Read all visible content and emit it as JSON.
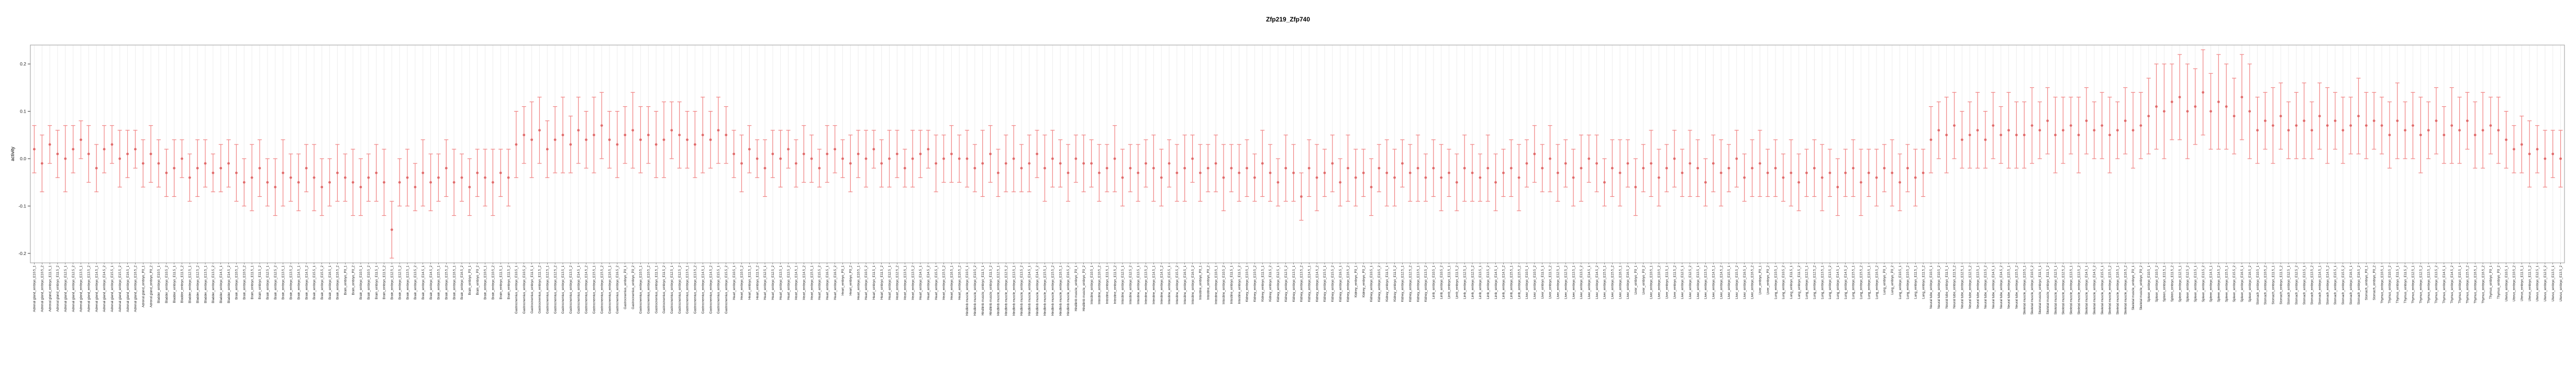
{
  "chart_data": {
    "type": "scatter",
    "title": "Zfp219_Zfp740",
    "ylabel": "activity",
    "xlabel": "",
    "ylim": [
      -0.22,
      0.24
    ],
    "yticks": [
      0.2,
      0.1,
      0.0,
      -0.1,
      -0.2
    ],
    "grid": "vertical-per-category",
    "legend": "none",
    "marker": "point-with-capped-errorbar",
    "point_color": "#e06c6c",
    "error_color": "#f08080",
    "gridline_color": "#ededed",
    "frame_color": "#999999",
    "timepoints": [
      "E10.5_1",
      "E10.5_2",
      "E11.5_1",
      "E11.5_2",
      "E12.5_1",
      "E12.5_2",
      "E13.5_1",
      "E13.5_2",
      "E14.5_1",
      "E14.5_2",
      "E15.5_1",
      "E15.5_2",
      "E16.5_1",
      "E16.5_2",
      "P0_1",
      "P0_2"
    ],
    "groups": [
      {
        "name": "Adrenal gland",
        "values": [
          0.02,
          -0.01,
          0.03,
          0.01,
          0,
          0.02,
          0.04,
          0.01,
          -0.02,
          0.02,
          0.03,
          0,
          0.01,
          0.02,
          -0.01,
          0.01
        ],
        "errors": [
          0.05,
          0.06,
          0.04,
          0.05,
          0.07,
          0.05,
          0.04,
          0.06,
          0.05,
          0.05,
          0.04,
          0.06,
          0.05,
          0.04,
          0.05,
          0.06
        ]
      },
      {
        "name": "Bladder",
        "values": [
          -0.01,
          -0.03,
          -0.02,
          0,
          -0.04,
          -0.02,
          -0.01,
          -0.03,
          -0.02,
          -0.01
        ],
        "errors": [
          0.05,
          0.05,
          0.06,
          0.04,
          0.05,
          0.06,
          0.05,
          0.04,
          0.05,
          0.05
        ]
      },
      {
        "name": "Brain",
        "values": [
          -0.03,
          -0.05,
          -0.04,
          -0.02,
          -0.05,
          -0.06,
          -0.03,
          -0.04,
          -0.05,
          -0.02,
          -0.04,
          -0.06,
          -0.05,
          -0.03,
          -0.04,
          -0.05,
          -0.06,
          -0.04,
          -0.03,
          -0.05,
          -0.15,
          -0.05,
          -0.04,
          -0.06,
          -0.03,
          -0.05,
          -0.04,
          -0.02,
          -0.05,
          -0.04,
          -0.06,
          -0.03,
          -0.04,
          -0.05,
          -0.03,
          -0.04
        ],
        "errors": [
          0.06,
          0.05,
          0.07,
          0.06,
          0.05,
          0.06,
          0.07,
          0.05,
          0.06,
          0.05,
          0.07,
          0.06,
          0.05,
          0.06,
          0.05,
          0.07,
          0.06,
          0.05,
          0.06,
          0.07,
          0.06,
          0.05,
          0.06,
          0.05,
          0.07,
          0.06,
          0.05,
          0.06,
          0.07,
          0.05,
          0.06,
          0.05,
          0.06,
          0.07,
          0.05,
          0.06
        ]
      },
      {
        "name": "Gastrocnemius",
        "values": [
          0.03,
          0.05,
          0.04,
          0.06,
          0.02,
          0.04,
          0.05,
          0.03,
          0.06,
          0.04,
          0.05,
          0.07,
          0.04,
          0.03,
          0.05,
          0.06,
          0.04,
          0.05,
          0.03,
          0.04,
          0.06,
          0.05,
          0.04,
          0.03,
          0.05,
          0.04,
          0.06,
          0.05
        ],
        "errors": [
          0.07,
          0.06,
          0.08,
          0.07,
          0.06,
          0.07,
          0.08,
          0.06,
          0.07,
          0.06,
          0.08,
          0.07,
          0.06,
          0.07,
          0.06,
          0.08,
          0.07,
          0.06,
          0.07,
          0.08,
          0.06,
          0.07,
          0.06,
          0.07,
          0.08,
          0.06,
          0.07,
          0.06
        ]
      },
      {
        "name": "Heart",
        "values": [
          0.01,
          -0.01,
          0.02,
          0,
          -0.02,
          0.01,
          0,
          0.02,
          -0.01,
          0.01,
          0,
          -0.02,
          0.01,
          0.02,
          0,
          -0.01,
          0.01,
          0,
          0.02,
          -0.01,
          0,
          0.01,
          -0.02,
          0,
          0.01,
          0.02,
          -0.01,
          0,
          0.01,
          0
        ],
        "errors": [
          0.05,
          0.06,
          0.05,
          0.04,
          0.06,
          0.05,
          0.06,
          0.04,
          0.05,
          0.06,
          0.05,
          0.04,
          0.06,
          0.05,
          0.04,
          0.06,
          0.05,
          0.06,
          0.04,
          0.05,
          0.06,
          0.05,
          0.04,
          0.06,
          0.05,
          0.04,
          0.06,
          0.05,
          0.06,
          0.05
        ]
      },
      {
        "name": "Hindlimb muscle",
        "values": [
          0,
          -0.02,
          -0.01,
          0.01,
          -0.03,
          -0.01,
          0,
          -0.02,
          -0.01,
          0.01,
          -0.02,
          0,
          -0.01,
          -0.03,
          0,
          -0.01
        ],
        "errors": [
          0.06,
          0.05,
          0.07,
          0.06,
          0.05,
          0.06,
          0.07,
          0.05,
          0.06,
          0.05,
          0.07,
          0.06,
          0.05,
          0.06,
          0.05,
          0.06
        ]
      },
      {
        "name": "Intestine",
        "values": [
          -0.01,
          -0.03,
          -0.02,
          0,
          -0.04,
          -0.02,
          -0.03,
          -0.01,
          -0.02,
          -0.04,
          -0.01,
          -0.03,
          -0.02,
          0,
          -0.03,
          -0.02,
          -0.01,
          -0.04,
          -0.02,
          -0.03
        ],
        "errors": [
          0.05,
          0.06,
          0.05,
          0.07,
          0.06,
          0.05,
          0.06,
          0.05,
          0.07,
          0.06,
          0.05,
          0.06,
          0.07,
          0.05,
          0.06,
          0.05,
          0.06,
          0.07,
          0.05,
          0.06
        ]
      },
      {
        "name": "Kidney",
        "values": [
          -0.02,
          -0.04,
          -0.01,
          -0.03,
          -0.05,
          -0.02,
          -0.03,
          -0.08,
          -0.02,
          -0.04,
          -0.03,
          -0.01,
          -0.05,
          -0.02,
          -0.04,
          -0.03,
          -0.06,
          -0.02,
          -0.03,
          -0.04,
          -0.01,
          -0.03,
          -0.02,
          -0.04
        ],
        "errors": [
          0.06,
          0.05,
          0.07,
          0.06,
          0.05,
          0.07,
          0.06,
          0.05,
          0.06,
          0.07,
          0.05,
          0.06,
          0.05,
          0.07,
          0.06,
          0.05,
          0.06,
          0.05,
          0.07,
          0.06,
          0.05,
          0.06,
          0.07,
          0.05
        ]
      },
      {
        "name": "Limb",
        "values": [
          -0.02,
          -0.04,
          -0.03,
          -0.05,
          -0.02,
          -0.03,
          -0.04,
          -0.02,
          -0.05,
          -0.03,
          -0.02,
          -0.04
        ],
        "errors": [
          0.06,
          0.07,
          0.05,
          0.06,
          0.07,
          0.06,
          0.05,
          0.07,
          0.06,
          0.05,
          0.06,
          0.07
        ]
      },
      {
        "name": "Liver",
        "values": [
          -0.01,
          0.01,
          -0.02,
          0,
          -0.03,
          -0.01,
          -0.04,
          -0.02,
          0,
          -0.01,
          -0.05,
          -0.02,
          -0.03,
          -0.01,
          -0.06,
          -0.02,
          -0.01,
          -0.04,
          -0.02,
          0,
          -0.03,
          -0.01,
          -0.02,
          -0.05,
          -0.01,
          -0.03,
          -0.02,
          0,
          -0.04,
          -0.02,
          -0.01,
          -0.03
        ],
        "errors": [
          0.05,
          0.06,
          0.05,
          0.07,
          0.06,
          0.05,
          0.06,
          0.07,
          0.05,
          0.06,
          0.05,
          0.06,
          0.07,
          0.05,
          0.06,
          0.05,
          0.07,
          0.06,
          0.05,
          0.06,
          0.05,
          0.07,
          0.06,
          0.05,
          0.06,
          0.07,
          0.05,
          0.06,
          0.05,
          0.06,
          0.07,
          0.05
        ]
      },
      {
        "name": "Lung",
        "values": [
          -0.02,
          -0.04,
          -0.03,
          -0.05,
          -0.03,
          -0.02,
          -0.04,
          -0.03,
          -0.06,
          -0.03,
          -0.02,
          -0.05,
          -0.03,
          -0.04,
          -0.02,
          -0.03,
          -0.05,
          -0.02,
          -0.04,
          -0.03
        ],
        "errors": [
          0.06,
          0.05,
          0.07,
          0.06,
          0.05,
          0.06,
          0.07,
          0.05,
          0.06,
          0.05,
          0.06,
          0.07,
          0.05,
          0.06,
          0.05,
          0.07,
          0.06,
          0.05,
          0.06,
          0.05
        ]
      },
      {
        "name": "Neural tube",
        "values": [
          0.04,
          0.06,
          0.05,
          0.07,
          0.04,
          0.05,
          0.06,
          0.04,
          0.07,
          0.05,
          0.06,
          0.05
        ],
        "errors": [
          0.07,
          0.06,
          0.08,
          0.07,
          0.06,
          0.07,
          0.08,
          0.06,
          0.07,
          0.06,
          0.08,
          0.07
        ]
      },
      {
        "name": "Skeletal muscle",
        "values": [
          0.05,
          0.07,
          0.06,
          0.08,
          0.05,
          0.06,
          0.07,
          0.05,
          0.08,
          0.06,
          0.07,
          0.05,
          0.06,
          0.08,
          0.06,
          0.07
        ],
        "errors": [
          0.07,
          0.08,
          0.06,
          0.07,
          0.08,
          0.07,
          0.06,
          0.08,
          0.07,
          0.06,
          0.07,
          0.08,
          0.06,
          0.07,
          0.08,
          0.07
        ]
      },
      {
        "name": "Spleen",
        "values": [
          0.09,
          0.11,
          0.1,
          0.12,
          0.13,
          0.1,
          0.11,
          0.14,
          0.1,
          0.12,
          0.11,
          0.09,
          0.13,
          0.1
        ],
        "errors": [
          0.08,
          0.09,
          0.1,
          0.08,
          0.09,
          0.1,
          0.08,
          0.09,
          0.08,
          0.1,
          0.09,
          0.08,
          0.09,
          0.1
        ]
      },
      {
        "name": "Stomach",
        "values": [
          0.06,
          0.08,
          0.07,
          0.09,
          0.06,
          0.07,
          0.08,
          0.06,
          0.09,
          0.07,
          0.08,
          0.06,
          0.07,
          0.09,
          0.07,
          0.08
        ],
        "errors": [
          0.07,
          0.06,
          0.08,
          0.07,
          0.06,
          0.07,
          0.08,
          0.06,
          0.07,
          0.08,
          0.06,
          0.07,
          0.06,
          0.08,
          0.07,
          0.06
        ]
      },
      {
        "name": "Thymus",
        "values": [
          0.07,
          0.05,
          0.08,
          0.06,
          0.07,
          0.05,
          0.06,
          0.08,
          0.05,
          0.07,
          0.06,
          0.08,
          0.05,
          0.06,
          0.07,
          0.06
        ],
        "errors": [
          0.06,
          0.07,
          0.08,
          0.06,
          0.07,
          0.08,
          0.06,
          0.07,
          0.06,
          0.08,
          0.07,
          0.06,
          0.07,
          0.08,
          0.06,
          0.07
        ]
      },
      {
        "name": "Uterus",
        "values": [
          0.04,
          0.02,
          0.03,
          0.01,
          0.02,
          0,
          0.01,
          0
        ],
        "errors": [
          0.06,
          0.05,
          0.06,
          0.07,
          0.05,
          0.06,
          0.05,
          0.06
        ]
      }
    ]
  }
}
